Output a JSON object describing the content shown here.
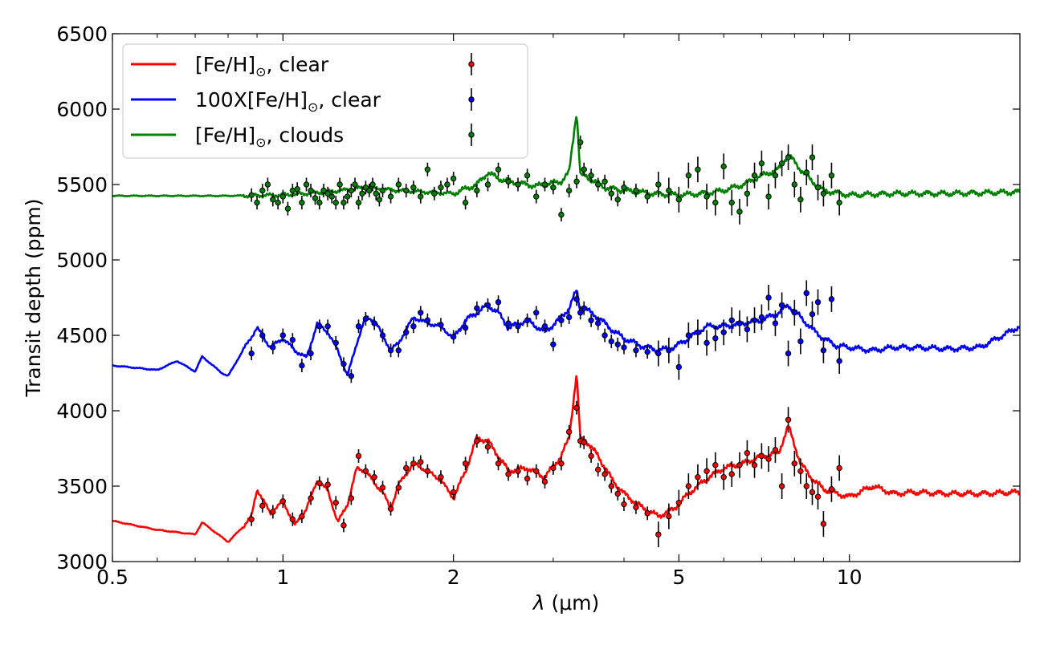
{
  "chart_data": {
    "type": "line",
    "xlabel": "λ (μm)",
    "xlabel_parts": {
      "symbol": "λ",
      "unit": "(μm)"
    },
    "ylabel": "Transit depth (ppm)",
    "xscale": "log",
    "xlim": [
      0.5,
      20
    ],
    "ylim": [
      3000,
      6500
    ],
    "x_ticks": [
      0.5,
      1,
      2,
      5,
      10
    ],
    "x_tick_labels": [
      "0.5",
      "1",
      "2",
      "5",
      "10"
    ],
    "x_minor_ticks": [
      0.6,
      0.7,
      0.8,
      0.9,
      3,
      4,
      6,
      7,
      8,
      9,
      20
    ],
    "y_ticks": [
      3000,
      3500,
      4000,
      4500,
      5000,
      5500,
      6000,
      6500
    ],
    "y_tick_labels": [
      "3000",
      "3500",
      "4000",
      "4500",
      "5000",
      "5500",
      "6000",
      "6500"
    ],
    "grid": false,
    "legend_position": "top-left",
    "series": [
      {
        "name": "[Fe/H]⊙, clear",
        "legend_parts": {
          "pre": "[Fe/H]",
          "sub": "⊙",
          "post": ", clear"
        },
        "color": "#ff0000",
        "model": {
          "x": [
            0.5,
            0.6,
            0.7,
            0.72,
            0.8,
            0.85,
            0.88,
            0.9,
            0.95,
            1.0,
            1.05,
            1.1,
            1.15,
            1.2,
            1.25,
            1.3,
            1.35,
            1.4,
            1.45,
            1.5,
            1.55,
            1.6,
            1.7,
            1.8,
            1.9,
            2.0,
            2.1,
            2.2,
            2.3,
            2.4,
            2.5,
            2.7,
            2.9,
            3.1,
            3.2,
            3.3,
            3.35,
            3.4,
            3.6,
            3.8,
            4.0,
            4.3,
            4.6,
            4.9,
            5.2,
            5.6,
            6.0,
            6.5,
            7.0,
            7.5,
            7.8,
            8.2,
            8.6,
            9.0,
            9.5,
            10.0,
            11.0,
            12.0,
            13.0,
            15.0,
            17.0,
            20.0
          ],
          "y": [
            3270,
            3210,
            3180,
            3260,
            3130,
            3230,
            3300,
            3480,
            3320,
            3400,
            3240,
            3350,
            3540,
            3470,
            3260,
            3380,
            3620,
            3600,
            3520,
            3460,
            3350,
            3510,
            3650,
            3600,
            3540,
            3420,
            3600,
            3820,
            3800,
            3700,
            3600,
            3620,
            3560,
            3700,
            3820,
            4250,
            3800,
            3820,
            3700,
            3550,
            3450,
            3360,
            3300,
            3350,
            3450,
            3550,
            3620,
            3650,
            3700,
            3720,
            3900,
            3650,
            3550,
            3480,
            3450,
            3430,
            3500,
            3450,
            3460,
            3450,
            3450,
            3460
          ]
        },
        "observations": {
          "x": [
            0.88,
            0.92,
            0.96,
            1.0,
            1.04,
            1.08,
            1.12,
            1.16,
            1.2,
            1.24,
            1.28,
            1.32,
            1.36,
            1.4,
            1.45,
            1.5,
            1.55,
            1.6,
            1.65,
            1.7,
            1.75,
            1.8,
            1.9,
            2.0,
            2.1,
            2.2,
            2.3,
            2.4,
            2.5,
            2.6,
            2.7,
            2.8,
            2.9,
            3.0,
            3.1,
            3.2,
            3.3,
            3.35,
            3.4,
            3.5,
            3.6,
            3.7,
            3.8,
            3.9,
            4.0,
            4.2,
            4.4,
            4.6,
            4.8,
            5.0,
            5.2,
            5.4,
            5.6,
            5.8,
            6.0,
            6.2,
            6.4,
            6.6,
            6.8,
            7.0,
            7.2,
            7.4,
            7.6,
            7.8,
            8.0,
            8.2,
            8.4,
            8.6,
            8.8,
            9.0,
            9.3,
            9.6
          ],
          "y": [
            3280,
            3370,
            3330,
            3400,
            3280,
            3300,
            3420,
            3520,
            3510,
            3390,
            3240,
            3420,
            3700,
            3600,
            3560,
            3490,
            3350,
            3490,
            3620,
            3650,
            3660,
            3600,
            3560,
            3460,
            3650,
            3800,
            3760,
            3650,
            3580,
            3600,
            3550,
            3600,
            3530,
            3620,
            3650,
            3860,
            4020,
            3800,
            3790,
            3700,
            3610,
            3580,
            3500,
            3450,
            3380,
            3360,
            3320,
            3180,
            3300,
            3390,
            3500,
            3560,
            3600,
            3640,
            3560,
            3580,
            3640,
            3720,
            3640,
            3700,
            3680,
            3740,
            3500,
            3940,
            3650,
            3600,
            3500,
            3460,
            3430,
            3250,
            3480,
            3620
          ]
        }
      },
      {
        "name": "100X[Fe/H]⊙, clear",
        "legend_parts": {
          "pre": "100X[Fe/H]",
          "sub": "⊙",
          "post": ", clear"
        },
        "color": "#0000ff",
        "model": {
          "x": [
            0.5,
            0.6,
            0.65,
            0.7,
            0.72,
            0.78,
            0.8,
            0.85,
            0.9,
            0.95,
            1.0,
            1.05,
            1.1,
            1.15,
            1.2,
            1.25,
            1.3,
            1.35,
            1.4,
            1.45,
            1.5,
            1.55,
            1.6,
            1.7,
            1.8,
            1.9,
            2.0,
            2.1,
            2.2,
            2.3,
            2.4,
            2.5,
            2.7,
            2.9,
            3.1,
            3.2,
            3.3,
            3.35,
            3.4,
            3.6,
            3.8,
            4.0,
            4.3,
            4.6,
            4.9,
            5.2,
            5.6,
            6.0,
            6.5,
            7.0,
            7.5,
            7.8,
            8.2,
            8.6,
            9.0,
            9.5,
            10.0,
            11.0,
            12.0,
            13.0,
            15.0,
            17.0,
            20.0
          ],
          "y": [
            4300,
            4270,
            4330,
            4260,
            4360,
            4250,
            4230,
            4400,
            4550,
            4420,
            4480,
            4400,
            4350,
            4580,
            4520,
            4400,
            4230,
            4450,
            4620,
            4600,
            4500,
            4400,
            4450,
            4620,
            4580,
            4560,
            4480,
            4600,
            4650,
            4700,
            4650,
            4550,
            4600,
            4520,
            4620,
            4680,
            4800,
            4660,
            4680,
            4620,
            4540,
            4480,
            4430,
            4400,
            4420,
            4480,
            4560,
            4560,
            4580,
            4600,
            4650,
            4700,
            4620,
            4540,
            4480,
            4430,
            4420,
            4400,
            4420,
            4420,
            4410,
            4420,
            4560
          ]
        },
        "observations": {
          "x": [
            0.88,
            0.92,
            0.96,
            1.0,
            1.04,
            1.08,
            1.12,
            1.16,
            1.2,
            1.24,
            1.28,
            1.32,
            1.36,
            1.4,
            1.45,
            1.5,
            1.55,
            1.6,
            1.65,
            1.7,
            1.75,
            1.8,
            1.9,
            2.0,
            2.1,
            2.2,
            2.3,
            2.4,
            2.5,
            2.6,
            2.7,
            2.8,
            2.9,
            3.0,
            3.1,
            3.2,
            3.3,
            3.35,
            3.4,
            3.5,
            3.6,
            3.7,
            3.8,
            3.9,
            4.0,
            4.2,
            4.4,
            4.6,
            4.8,
            5.0,
            5.2,
            5.4,
            5.6,
            5.8,
            6.0,
            6.2,
            6.4,
            6.6,
            6.8,
            7.0,
            7.2,
            7.4,
            7.6,
            7.8,
            8.0,
            8.2,
            8.4,
            8.6,
            8.8,
            9.0,
            9.3,
            9.6
          ],
          "y": [
            4380,
            4500,
            4420,
            4500,
            4470,
            4300,
            4380,
            4560,
            4560,
            4450,
            4310,
            4230,
            4560,
            4610,
            4580,
            4500,
            4400,
            4400,
            4520,
            4560,
            4650,
            4600,
            4570,
            4490,
            4550,
            4680,
            4700,
            4720,
            4580,
            4560,
            4600,
            4650,
            4560,
            4440,
            4600,
            4620,
            4740,
            4650,
            4680,
            4600,
            4580,
            4500,
            4460,
            4440,
            4420,
            4400,
            4390,
            4380,
            4400,
            4290,
            4500,
            4520,
            4450,
            4480,
            4520,
            4600,
            4580,
            4540,
            4600,
            4620,
            4750,
            4580,
            4700,
            4380,
            4650,
            4460,
            4780,
            4640,
            4720,
            4400,
            4740,
            4330
          ]
        }
      },
      {
        "name": "[Fe/H]⊙, clouds",
        "legend_parts": {
          "pre": "[Fe/H]",
          "sub": "⊙",
          "post": ", clouds"
        },
        "color": "#008000",
        "model": {
          "x": [
            0.5,
            0.8,
            1.0,
            1.2,
            1.4,
            1.6,
            1.8,
            2.0,
            2.2,
            2.3,
            2.4,
            2.5,
            2.8,
            3.1,
            3.2,
            3.3,
            3.35,
            3.4,
            3.7,
            4.0,
            4.5,
            5.0,
            5.5,
            6.0,
            6.5,
            7.0,
            7.5,
            7.8,
            8.2,
            8.6,
            9.0,
            10.0,
            12.0,
            15.0,
            20.0
          ],
          "y": [
            5425,
            5425,
            5430,
            5450,
            5480,
            5460,
            5450,
            5440,
            5500,
            5580,
            5540,
            5520,
            5490,
            5520,
            5580,
            5990,
            5560,
            5560,
            5480,
            5460,
            5440,
            5430,
            5440,
            5460,
            5500,
            5560,
            5600,
            5700,
            5600,
            5520,
            5460,
            5430,
            5440,
            5440,
            5450
          ]
        },
        "observations": {
          "x": [
            0.88,
            0.9,
            0.92,
            0.94,
            0.96,
            0.98,
            1.0,
            1.02,
            1.04,
            1.06,
            1.08,
            1.1,
            1.12,
            1.14,
            1.16,
            1.18,
            1.2,
            1.22,
            1.24,
            1.26,
            1.28,
            1.3,
            1.32,
            1.34,
            1.36,
            1.38,
            1.4,
            1.42,
            1.44,
            1.46,
            1.48,
            1.5,
            1.55,
            1.6,
            1.65,
            1.7,
            1.75,
            1.8,
            1.85,
            1.9,
            1.95,
            2.0,
            2.1,
            2.2,
            2.3,
            2.4,
            2.5,
            2.6,
            2.7,
            2.8,
            2.9,
            3.0,
            3.1,
            3.2,
            3.3,
            3.35,
            3.4,
            3.5,
            3.6,
            3.7,
            3.8,
            3.9,
            4.0,
            4.2,
            4.4,
            4.6,
            4.8,
            5.0,
            5.2,
            5.4,
            5.6,
            5.8,
            6.0,
            6.2,
            6.4,
            6.6,
            6.8,
            7.0,
            7.2,
            7.4,
            7.6,
            7.8,
            8.0,
            8.2,
            8.4,
            8.6,
            8.8,
            9.0,
            9.3,
            9.6
          ],
          "y": [
            5430,
            5380,
            5460,
            5500,
            5400,
            5380,
            5420,
            5340,
            5460,
            5470,
            5380,
            5500,
            5460,
            5410,
            5380,
            5460,
            5440,
            5420,
            5380,
            5500,
            5380,
            5420,
            5460,
            5500,
            5380,
            5440,
            5480,
            5460,
            5500,
            5440,
            5400,
            5460,
            5420,
            5500,
            5460,
            5480,
            5420,
            5600,
            5440,
            5480,
            5500,
            5540,
            5380,
            5460,
            5500,
            5600,
            5520,
            5500,
            5560,
            5420,
            5500,
            5480,
            5300,
            5460,
            5520,
            5780,
            5600,
            5560,
            5500,
            5520,
            5440,
            5400,
            5480,
            5460,
            5420,
            5500,
            5460,
            5400,
            5560,
            5600,
            5420,
            5380,
            5620,
            5380,
            5320,
            5440,
            5560,
            5640,
            5420,
            5560,
            5640,
            5680,
            5500,
            5400,
            5580,
            5680,
            5480,
            5440,
            5560,
            5380
          ]
        }
      }
    ]
  }
}
